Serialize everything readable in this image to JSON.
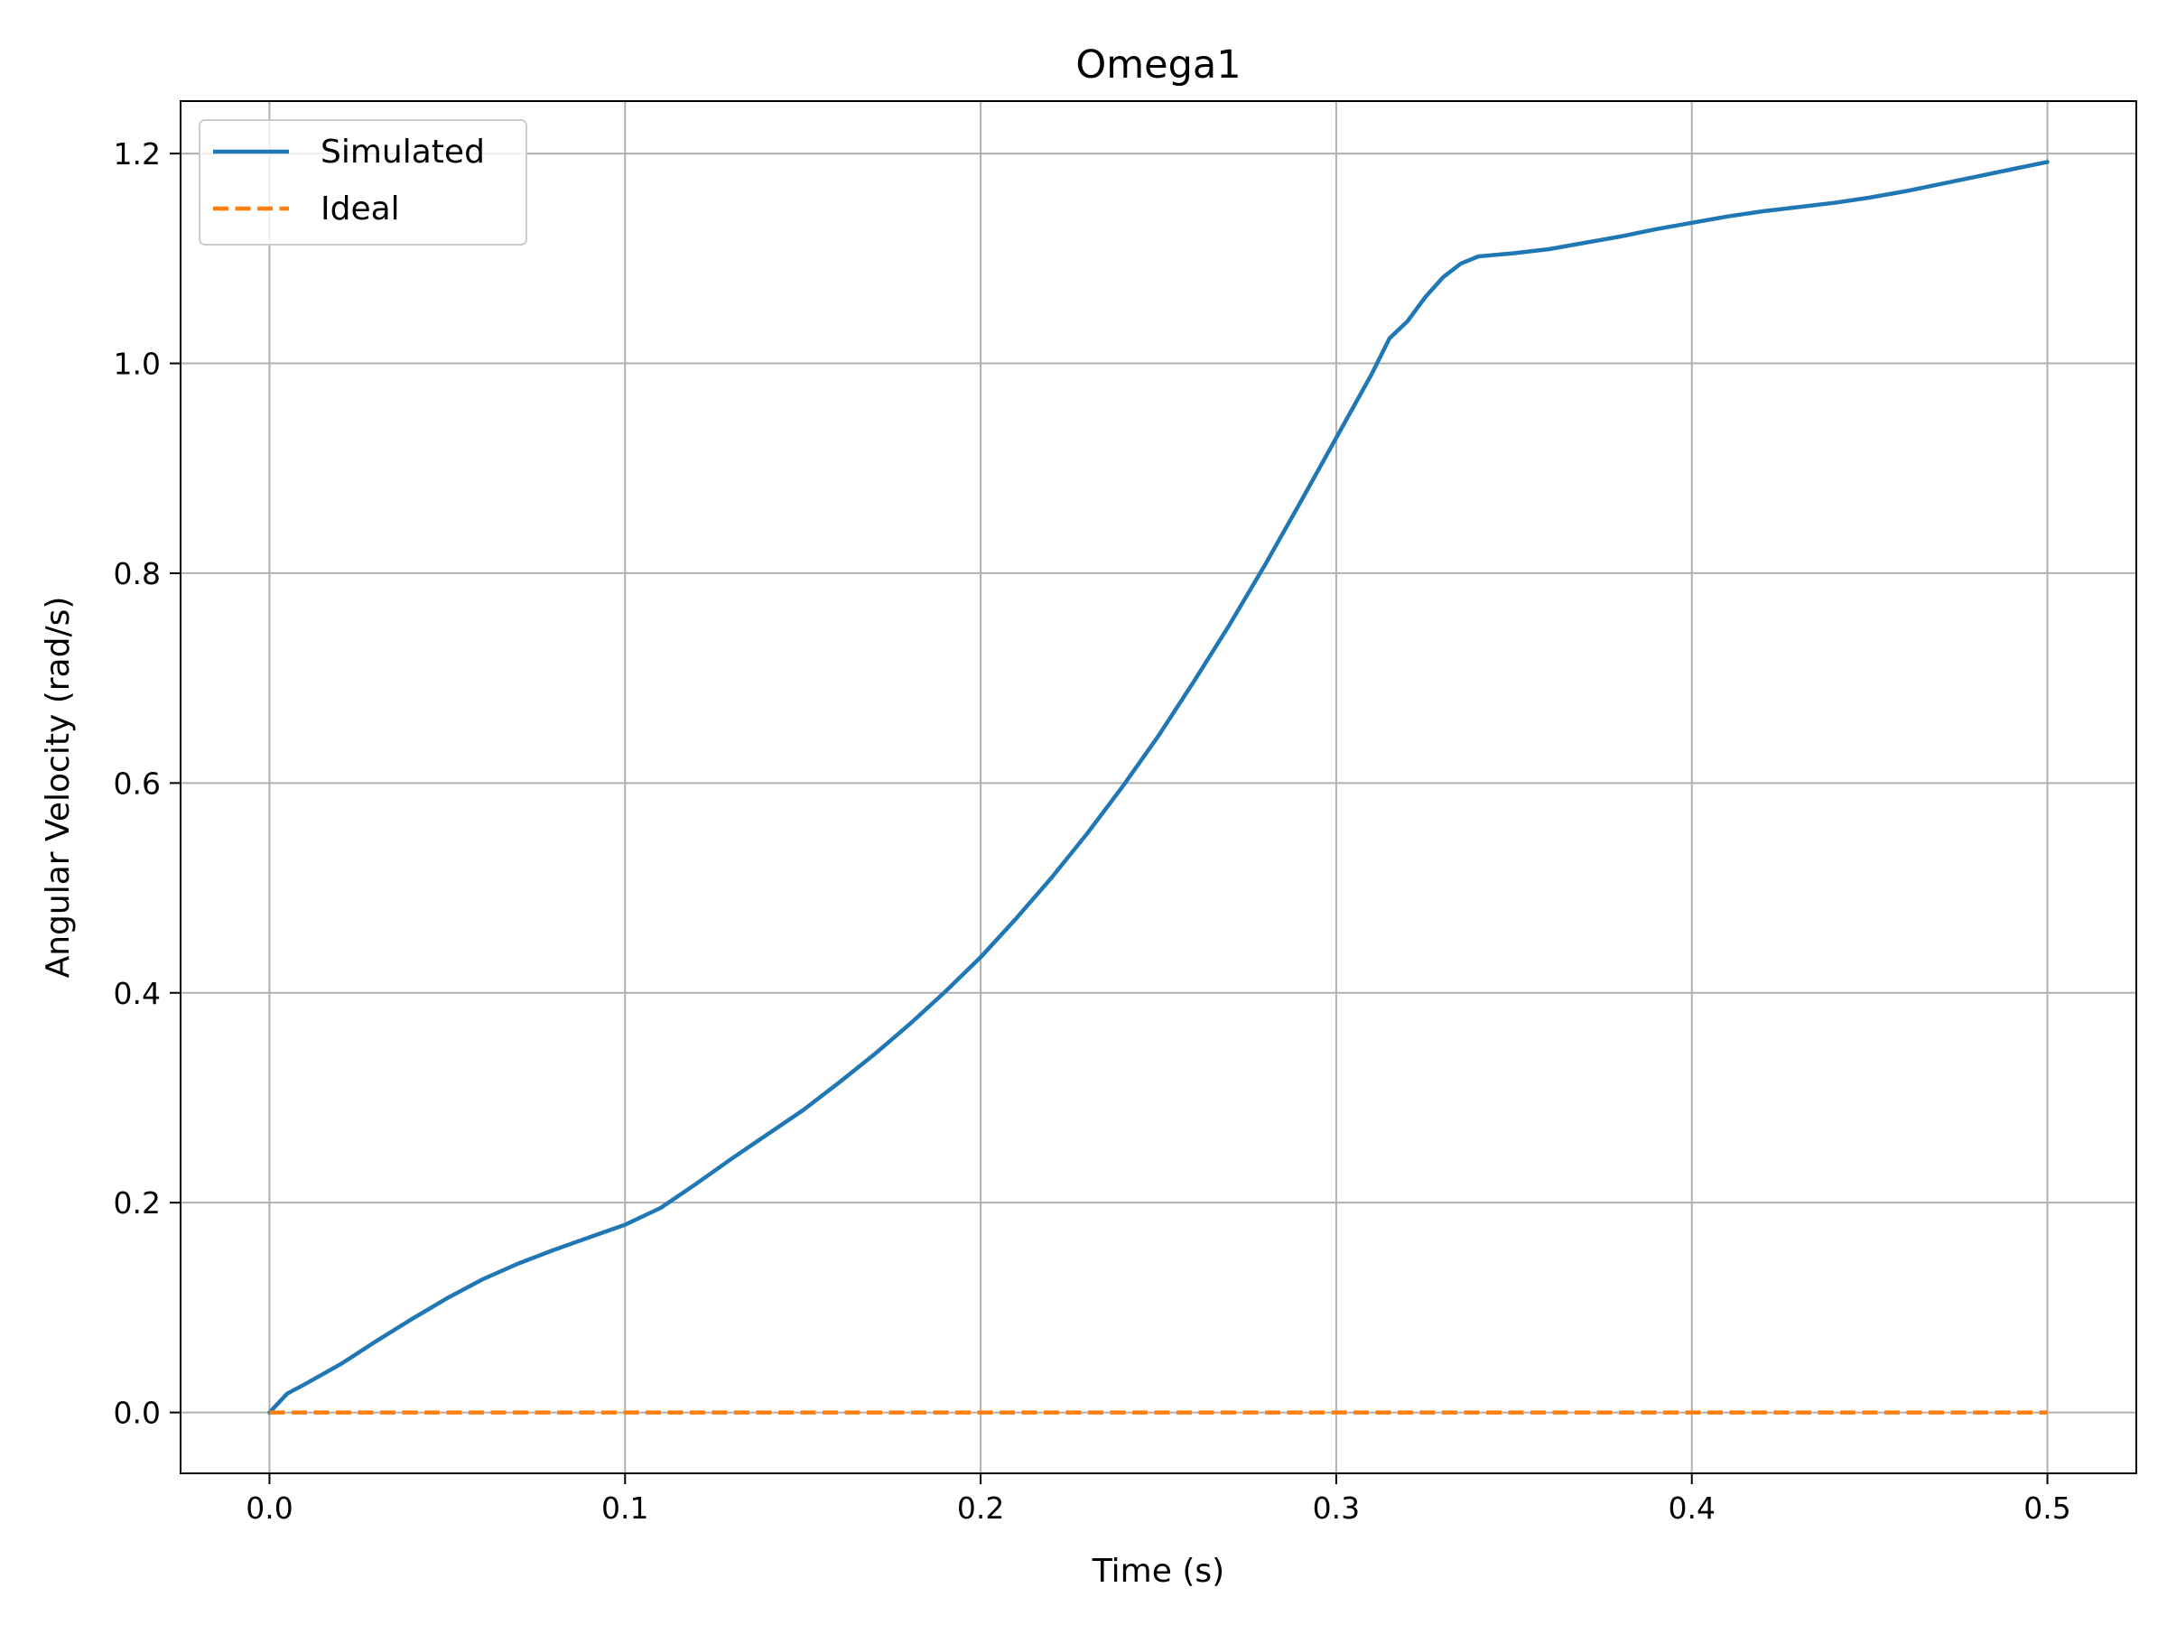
{
  "chart_data": {
    "type": "line",
    "title": "Omega1",
    "xlabel": "Time (s)",
    "ylabel": "Angular Velocity (rad/s)",
    "xlim": [
      -0.025,
      0.525
    ],
    "ylim": [
      -0.058,
      1.25
    ],
    "xticks": [
      0.0,
      0.1,
      0.2,
      0.3,
      0.4,
      0.5
    ],
    "xtick_labels": [
      "0.0",
      "0.1",
      "0.2",
      "0.3",
      "0.4",
      "0.5"
    ],
    "yticks": [
      0.0,
      0.2,
      0.4,
      0.6,
      0.8,
      1.0,
      1.2
    ],
    "ytick_labels": [
      "0.0",
      "0.2",
      "0.4",
      "0.6",
      "0.8",
      "1.0",
      "1.2"
    ],
    "grid": true,
    "legend_position": "top-left",
    "series": [
      {
        "name": "Simulated",
        "color": "#1f77b4",
        "style": "solid",
        "x": [
          0.0,
          0.005,
          0.01,
          0.02,
          0.03,
          0.04,
          0.05,
          0.06,
          0.07,
          0.08,
          0.09,
          0.1,
          0.11,
          0.12,
          0.13,
          0.14,
          0.15,
          0.16,
          0.17,
          0.18,
          0.19,
          0.2,
          0.21,
          0.22,
          0.23,
          0.24,
          0.25,
          0.26,
          0.27,
          0.28,
          0.29,
          0.3,
          0.31,
          0.315,
          0.32,
          0.325,
          0.33,
          0.335,
          0.34,
          0.35,
          0.36,
          0.37,
          0.38,
          0.39,
          0.4,
          0.41,
          0.42,
          0.43,
          0.44,
          0.45,
          0.46,
          0.47,
          0.48,
          0.49,
          0.5
        ],
        "y": [
          0.0,
          0.018,
          0.027,
          0.046,
          0.068,
          0.089,
          0.109,
          0.127,
          0.142,
          0.155,
          0.167,
          0.179,
          0.195,
          0.218,
          0.242,
          0.265,
          0.288,
          0.314,
          0.341,
          0.37,
          0.401,
          0.434,
          0.471,
          0.51,
          0.552,
          0.597,
          0.645,
          0.697,
          0.751,
          0.808,
          0.868,
          0.929,
          0.99,
          1.024,
          1.04,
          1.063,
          1.082,
          1.095,
          1.102,
          1.105,
          1.109,
          1.115,
          1.121,
          1.128,
          1.134,
          1.14,
          1.145,
          1.149,
          1.153,
          1.158,
          1.164,
          1.171,
          1.178,
          1.185,
          1.192
        ]
      },
      {
        "name": "Ideal",
        "color": "#ff7f0e",
        "style": "dashed",
        "x": [
          0.0,
          0.5
        ],
        "y": [
          0.0,
          0.0
        ]
      }
    ]
  }
}
